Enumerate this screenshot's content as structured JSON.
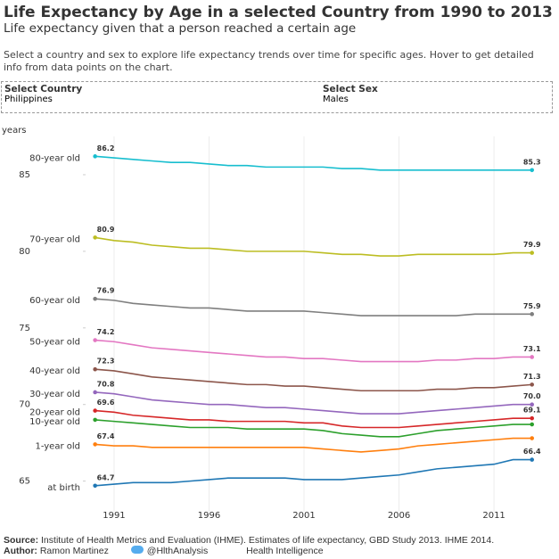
{
  "header": {
    "title": "Life Expectancy by Age in a selected Country from 1990 to 2013",
    "subtitle": "Life expectancy given that a person reached a certain age",
    "description": "Select a country and sex to explore life expectancy trends over time for specific ages. Hover to get detailed info from data points on the chart."
  },
  "filters": [
    {
      "label": "Select Country",
      "value": "Philippines"
    },
    {
      "label": "Select Sex",
      "value": "Males"
    }
  ],
  "chart_data": {
    "type": "line",
    "ylabel": "years",
    "x": [
      1990,
      1991,
      1992,
      1993,
      1994,
      1995,
      1996,
      1997,
      1998,
      1999,
      2000,
      2001,
      2002,
      2003,
      2004,
      2005,
      2006,
      2007,
      2008,
      2009,
      2010,
      2011,
      2012,
      2013
    ],
    "xlim": [
      1989.5,
      2014
    ],
    "xticks": [
      1991,
      1996,
      2001,
      2006,
      2011
    ],
    "xgrid": true,
    "ylim": [
      63,
      87.5
    ],
    "yticks": [
      65,
      70,
      75,
      80,
      85
    ],
    "series": [
      {
        "name": "80-year old",
        "color": "#17becf",
        "values": [
          86.2,
          86.1,
          86.0,
          85.9,
          85.8,
          85.8,
          85.7,
          85.6,
          85.6,
          85.5,
          85.5,
          85.5,
          85.5,
          85.4,
          85.4,
          85.3,
          85.3,
          85.3,
          85.3,
          85.3,
          85.3,
          85.3,
          85.3,
          85.3
        ],
        "value_labels": [
          "86.2",
          null,
          null,
          null,
          null,
          null,
          null,
          null,
          null,
          null,
          null,
          null,
          null,
          null,
          null,
          null,
          null,
          null,
          null,
          null,
          null,
          null,
          null,
          "85.3"
        ]
      },
      {
        "name": "70-year old",
        "color": "#bcbd22",
        "values": [
          80.9,
          80.7,
          80.6,
          80.4,
          80.3,
          80.2,
          80.2,
          80.1,
          80.0,
          80.0,
          80.0,
          80.0,
          79.9,
          79.8,
          79.8,
          79.7,
          79.7,
          79.8,
          79.8,
          79.8,
          79.8,
          79.8,
          79.9,
          79.9
        ],
        "value_labels": [
          "80.9",
          null,
          null,
          null,
          null,
          null,
          null,
          null,
          null,
          null,
          null,
          null,
          null,
          null,
          null,
          null,
          null,
          null,
          null,
          null,
          null,
          null,
          null,
          "79.9"
        ]
      },
      {
        "name": "60-year old",
        "color": "#7f7f7f",
        "values": [
          76.9,
          76.8,
          76.6,
          76.5,
          76.4,
          76.3,
          76.3,
          76.2,
          76.1,
          76.1,
          76.1,
          76.1,
          76.0,
          75.9,
          75.8,
          75.8,
          75.8,
          75.8,
          75.8,
          75.8,
          75.9,
          75.9,
          75.9,
          75.9
        ],
        "value_labels": [
          "76.9",
          null,
          null,
          null,
          null,
          null,
          null,
          null,
          null,
          null,
          null,
          null,
          null,
          null,
          null,
          null,
          null,
          null,
          null,
          null,
          null,
          null,
          null,
          "75.9"
        ]
      },
      {
        "name": "50-year old",
        "color": "#e377c2",
        "values": [
          74.2,
          74.1,
          73.9,
          73.7,
          73.6,
          73.5,
          73.4,
          73.3,
          73.2,
          73.1,
          73.1,
          73.0,
          73.0,
          72.9,
          72.8,
          72.8,
          72.8,
          72.8,
          72.9,
          72.9,
          73.0,
          73.0,
          73.1,
          73.1
        ],
        "value_labels": [
          "74.2",
          null,
          null,
          null,
          null,
          null,
          null,
          null,
          null,
          null,
          null,
          null,
          null,
          null,
          null,
          null,
          null,
          null,
          null,
          null,
          null,
          null,
          null,
          "73.1"
        ]
      },
      {
        "name": "40-year old",
        "color": "#8c564b",
        "values": [
          72.3,
          72.2,
          72.0,
          71.8,
          71.7,
          71.6,
          71.5,
          71.4,
          71.3,
          71.3,
          71.2,
          71.2,
          71.1,
          71.0,
          70.9,
          70.9,
          70.9,
          70.9,
          71.0,
          71.0,
          71.1,
          71.1,
          71.2,
          71.3
        ],
        "value_labels": [
          "72.3",
          null,
          null,
          null,
          null,
          null,
          null,
          null,
          null,
          null,
          null,
          null,
          null,
          null,
          null,
          null,
          null,
          null,
          null,
          null,
          null,
          null,
          null,
          "71.3"
        ]
      },
      {
        "name": "30-year old",
        "color": "#9467bd",
        "values": [
          70.8,
          70.7,
          70.5,
          70.3,
          70.2,
          70.1,
          70.0,
          70.0,
          69.9,
          69.8,
          69.8,
          69.7,
          69.6,
          69.5,
          69.4,
          69.4,
          69.4,
          69.5,
          69.6,
          69.7,
          69.8,
          69.9,
          70.0,
          70.0
        ],
        "value_labels": [
          "70.8",
          null,
          null,
          null,
          null,
          null,
          null,
          null,
          null,
          null,
          null,
          null,
          null,
          null,
          null,
          null,
          null,
          null,
          null,
          null,
          null,
          null,
          null,
          "70.0"
        ]
      },
      {
        "name": "20-year old",
        "color": "#d62728",
        "values": [
          69.6,
          69.5,
          69.3,
          69.2,
          69.1,
          69.0,
          69.0,
          68.9,
          68.9,
          68.9,
          68.9,
          68.8,
          68.8,
          68.6,
          68.5,
          68.5,
          68.5,
          68.6,
          68.7,
          68.8,
          68.9,
          69.0,
          69.1,
          69.1
        ],
        "value_labels": [
          "69.6",
          null,
          null,
          null,
          null,
          null,
          null,
          null,
          null,
          null,
          null,
          null,
          null,
          null,
          null,
          null,
          null,
          null,
          null,
          null,
          null,
          null,
          null,
          "69.1"
        ]
      },
      {
        "name": "10-year old",
        "color": "#2ca02c",
        "values": [
          69.0,
          68.9,
          68.8,
          68.7,
          68.6,
          68.5,
          68.5,
          68.5,
          68.4,
          68.4,
          68.4,
          68.4,
          68.3,
          68.1,
          68.0,
          67.9,
          67.9,
          68.1,
          68.3,
          68.4,
          68.5,
          68.6,
          68.7,
          68.7
        ]
      },
      {
        "name": "1-year old",
        "color": "#ff7f0e",
        "values": [
          67.4,
          67.3,
          67.3,
          67.2,
          67.2,
          67.2,
          67.2,
          67.2,
          67.2,
          67.2,
          67.2,
          67.2,
          67.1,
          67.0,
          66.9,
          67.0,
          67.1,
          67.3,
          67.4,
          67.5,
          67.6,
          67.7,
          67.8,
          67.8
        ],
        "value_labels": [
          "67.4",
          null,
          null,
          null,
          null,
          null,
          null,
          null,
          null,
          null,
          null,
          null,
          null,
          null,
          null,
          null,
          null,
          null,
          null,
          null,
          null,
          null,
          null,
          null
        ]
      },
      {
        "name": "at birth",
        "color": "#1f77b4",
        "values": [
          64.7,
          64.8,
          64.9,
          64.9,
          64.9,
          65.0,
          65.1,
          65.2,
          65.2,
          65.2,
          65.2,
          65.1,
          65.1,
          65.1,
          65.2,
          65.3,
          65.4,
          65.6,
          65.8,
          65.9,
          66.0,
          66.1,
          66.4,
          66.4
        ],
        "value_labels": [
          "64.7",
          null,
          null,
          null,
          null,
          null,
          null,
          null,
          null,
          null,
          null,
          null,
          null,
          null,
          null,
          null,
          null,
          null,
          null,
          null,
          null,
          null,
          null,
          "66.4"
        ]
      }
    ]
  },
  "footer": {
    "source_label": "Source:",
    "source": "Institute of Health Metrics and Evaluation (IHME). Estimates of life expectancy, GBD Study 2013. IHME 2014.",
    "author_label": "Author:",
    "author": "Ramon Martinez",
    "twitter": "@HlthAnalysis",
    "org": "Health Intelligence"
  }
}
